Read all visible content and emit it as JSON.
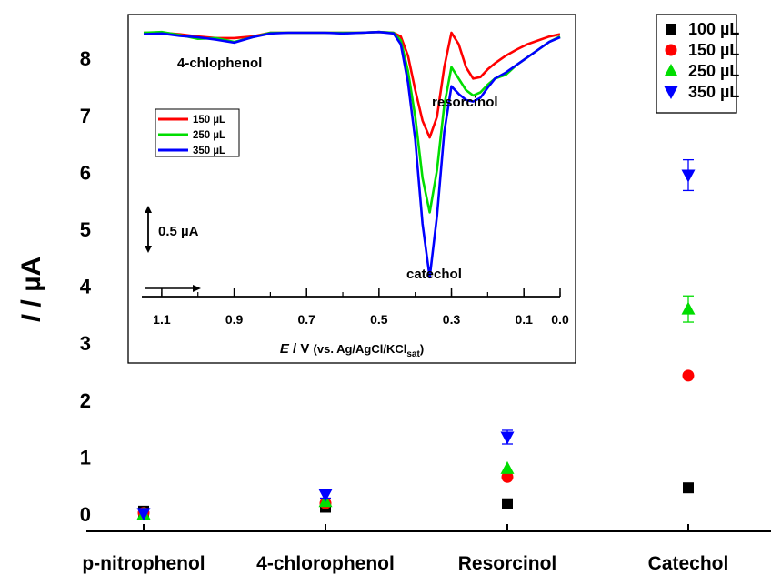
{
  "chart_data": [
    {
      "type": "scatter",
      "ylabel": "I / µA",
      "ylim": [
        -0.2,
        8.6
      ],
      "yticks": [
        "0",
        "1",
        "2",
        "3",
        "4",
        "5",
        "6",
        "7",
        "8"
      ],
      "categories": [
        "p-nitrophenol",
        "4-chlorophenol",
        "Resorcinol",
        "Catechol"
      ],
      "legend_position": "top-right",
      "series": [
        {
          "name": "100 µL",
          "color": "#000000",
          "marker": "square",
          "values": [
            0.05,
            0.12,
            0.18,
            0.46
          ],
          "errors": [
            0,
            0,
            0,
            0
          ]
        },
        {
          "name": "150 µL",
          "color": "#ff0000",
          "marker": "circle",
          "values": [
            0.02,
            0.19,
            0.65,
            2.43
          ],
          "errors": [
            0,
            0,
            0,
            0
          ]
        },
        {
          "name": "250 µL",
          "color": "#00dd00",
          "marker": "triangle-up",
          "values": [
            0.0,
            0.22,
            0.8,
            3.6
          ],
          "errors": [
            0,
            0,
            0,
            0.23
          ]
        },
        {
          "name": "350 µL",
          "color": "#0000ff",
          "marker": "triangle-down",
          "values": [
            0.01,
            0.34,
            1.35,
            5.95
          ],
          "errors": [
            0,
            0.06,
            0.12,
            0.27
          ]
        }
      ]
    },
    {
      "type": "line",
      "xlabel": {
        "italic": "E",
        "main": " / V ",
        "paren": "(vs. Ag/AgCl/KCl",
        "sub": "sat",
        "close": ")"
      },
      "xlim": [
        1.15,
        0.0
      ],
      "xticks": [
        "1.1",
        "0.9",
        "0.7",
        "0.5",
        "0.3",
        "0.1",
        "0.0"
      ],
      "scale_bar": "0.5 µA",
      "annotations": [
        "4-chlophenol",
        "resorcinol",
        "catechol"
      ],
      "legend_position": "top-left",
      "series": [
        {
          "name": "150 µL",
          "color": "#ff0000",
          "points": [
            [
              1.15,
              0
            ],
            [
              1.1,
              0
            ],
            [
              1.05,
              -0.02
            ],
            [
              1.0,
              -0.05
            ],
            [
              0.95,
              -0.07
            ],
            [
              0.9,
              -0.07
            ],
            [
              0.85,
              -0.05
            ],
            [
              0.8,
              0
            ],
            [
              0.75,
              0
            ],
            [
              0.7,
              0
            ],
            [
              0.65,
              0
            ],
            [
              0.6,
              0
            ],
            [
              0.55,
              0
            ],
            [
              0.5,
              0.01
            ],
            [
              0.46,
              0
            ],
            [
              0.44,
              -0.05
            ],
            [
              0.42,
              -0.3
            ],
            [
              0.4,
              -0.75
            ],
            [
              0.38,
              -1.15
            ],
            [
              0.36,
              -1.37
            ],
            [
              0.34,
              -1.1
            ],
            [
              0.32,
              -0.45
            ],
            [
              0.3,
              0
            ],
            [
              0.28,
              -0.15
            ],
            [
              0.26,
              -0.45
            ],
            [
              0.24,
              -0.6
            ],
            [
              0.22,
              -0.58
            ],
            [
              0.2,
              -0.48
            ],
            [
              0.18,
              -0.4
            ],
            [
              0.15,
              -0.3
            ],
            [
              0.12,
              -0.22
            ],
            [
              0.09,
              -0.15
            ],
            [
              0.06,
              -0.1
            ],
            [
              0.03,
              -0.05
            ],
            [
              0.0,
              -0.02
            ]
          ]
        },
        {
          "name": "250 µL",
          "color": "#00dd00",
          "points": [
            [
              1.15,
              0
            ],
            [
              1.1,
              0.01
            ],
            [
              1.05,
              -0.03
            ],
            [
              1.0,
              -0.08
            ],
            [
              0.95,
              -0.07
            ],
            [
              0.9,
              -0.12
            ],
            [
              0.85,
              -0.06
            ],
            [
              0.8,
              0
            ],
            [
              0.75,
              0
            ],
            [
              0.7,
              0
            ],
            [
              0.65,
              0
            ],
            [
              0.6,
              0
            ],
            [
              0.55,
              0
            ],
            [
              0.5,
              0.01
            ],
            [
              0.46,
              0
            ],
            [
              0.44,
              -0.1
            ],
            [
              0.42,
              -0.5
            ],
            [
              0.4,
              -1.1
            ],
            [
              0.38,
              -1.9
            ],
            [
              0.36,
              -2.35
            ],
            [
              0.34,
              -1.8
            ],
            [
              0.32,
              -0.95
            ],
            [
              0.3,
              -0.45
            ],
            [
              0.28,
              -0.6
            ],
            [
              0.26,
              -0.75
            ],
            [
              0.24,
              -0.82
            ],
            [
              0.22,
              -0.78
            ],
            [
              0.2,
              -0.68
            ],
            [
              0.18,
              -0.6
            ],
            [
              0.15,
              -0.55
            ],
            [
              0.12,
              -0.42
            ],
            [
              0.09,
              -0.32
            ],
            [
              0.06,
              -0.22
            ],
            [
              0.03,
              -0.12
            ],
            [
              0.0,
              -0.05
            ]
          ]
        },
        {
          "name": "350 µL",
          "color": "#0000ff",
          "points": [
            [
              1.15,
              -0.02
            ],
            [
              1.1,
              -0.01
            ],
            [
              1.05,
              -0.04
            ],
            [
              1.0,
              -0.06
            ],
            [
              0.95,
              -0.09
            ],
            [
              0.9,
              -0.13
            ],
            [
              0.85,
              -0.06
            ],
            [
              0.8,
              -0.01
            ],
            [
              0.75,
              0
            ],
            [
              0.7,
              0
            ],
            [
              0.65,
              0
            ],
            [
              0.6,
              -0.01
            ],
            [
              0.55,
              0
            ],
            [
              0.5,
              0.01
            ],
            [
              0.46,
              -0.01
            ],
            [
              0.44,
              -0.15
            ],
            [
              0.42,
              -0.65
            ],
            [
              0.4,
              -1.4
            ],
            [
              0.38,
              -2.5
            ],
            [
              0.36,
              -3.2
            ],
            [
              0.34,
              -2.4
            ],
            [
              0.32,
              -1.3
            ],
            [
              0.3,
              -0.7
            ],
            [
              0.28,
              -0.8
            ],
            [
              0.26,
              -0.88
            ],
            [
              0.24,
              -0.9
            ],
            [
              0.22,
              -0.85
            ],
            [
              0.2,
              -0.72
            ],
            [
              0.18,
              -0.6
            ],
            [
              0.15,
              -0.52
            ],
            [
              0.12,
              -0.42
            ],
            [
              0.09,
              -0.32
            ],
            [
              0.06,
              -0.22
            ],
            [
              0.03,
              -0.12
            ],
            [
              0.0,
              -0.06
            ]
          ]
        }
      ]
    }
  ]
}
